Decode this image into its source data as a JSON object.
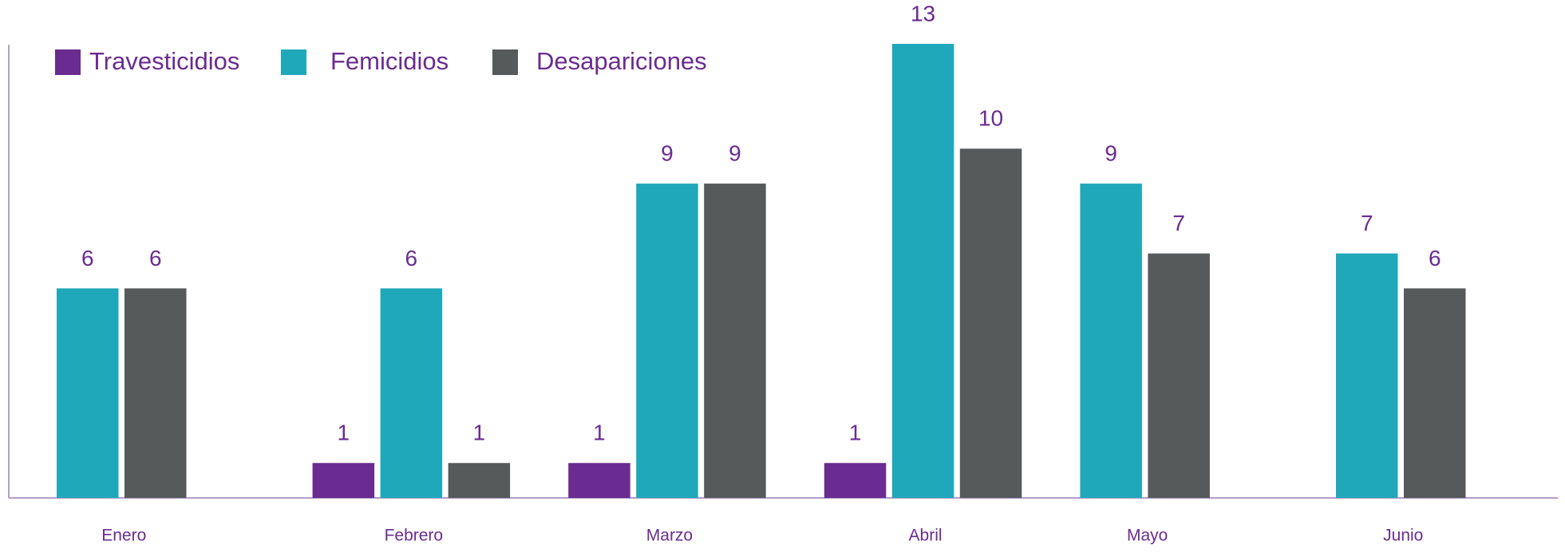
{
  "chart_data": {
    "type": "bar",
    "categories": [
      "Enero",
      "Febrero",
      "Marzo",
      "Abril",
      "Mayo",
      "Junio"
    ],
    "series": [
      {
        "name": "Travesticidios",
        "color": "#6a2c91",
        "values": [
          null,
          1,
          1,
          1,
          null,
          null
        ]
      },
      {
        "name": "Femicidios",
        "color": "#1fa8ba",
        "values": [
          6,
          6,
          9,
          13,
          9,
          7
        ]
      },
      {
        "name": "Desapariciones",
        "color": "#575a5b",
        "values": [
          6,
          1,
          9,
          10,
          7,
          6
        ]
      }
    ],
    "ylim": [
      0,
      13
    ],
    "legend": "top-left",
    "grid": false
  }
}
